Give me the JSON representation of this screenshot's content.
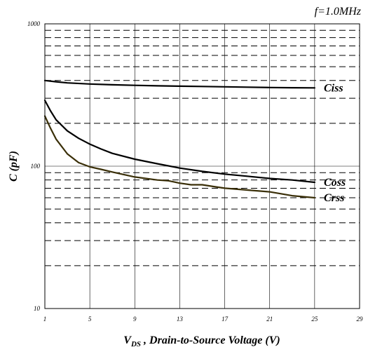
{
  "chart_data": {
    "type": "line",
    "title": "",
    "annotation": "f=1.0MHz",
    "xlabel": {
      "symbol": "V",
      "subscript": "DS",
      "text": " , Drain-to-Source Voltage (V)"
    },
    "ylabel": "C (pF)",
    "xlim": [
      1,
      29
    ],
    "ylim": [
      10,
      1000
    ],
    "yscale": "log",
    "grid": true,
    "x_ticks": [
      "1",
      "5",
      "9",
      "13",
      "17",
      "21",
      "25",
      "29"
    ],
    "y_ticks": [
      "10",
      "100",
      "1000"
    ],
    "series": [
      {
        "name": "Ciss",
        "color": "#000000",
        "x": [
          1,
          2,
          3,
          5,
          7,
          9,
          11,
          13,
          15,
          17,
          19,
          21,
          23,
          25
        ],
        "y": [
          400,
          392,
          385,
          378,
          373,
          370,
          367,
          365,
          363,
          361,
          359,
          357,
          356,
          355
        ]
      },
      {
        "name": "Coss",
        "color": "#000000",
        "x": [
          1,
          1.5,
          2,
          3,
          4,
          5,
          6,
          7,
          9,
          11,
          13,
          15,
          17,
          19,
          21,
          23,
          25
        ],
        "y": [
          290,
          245,
          212,
          177,
          157,
          143,
          132,
          123,
          112,
          104,
          97,
          92,
          88,
          85,
          82,
          80,
          77
        ]
      },
      {
        "name": "Crss",
        "color": "#3a2f08",
        "x": [
          1,
          1.5,
          2,
          3,
          4,
          5,
          6,
          7,
          9,
          11,
          12,
          13,
          14,
          15,
          16,
          17,
          19,
          21,
          23,
          25
        ],
        "y": [
          225,
          185,
          155,
          122,
          106,
          99,
          95,
          91,
          84,
          80,
          79,
          76,
          74,
          74,
          72,
          70,
          68,
          66,
          62,
          60
        ]
      }
    ]
  }
}
